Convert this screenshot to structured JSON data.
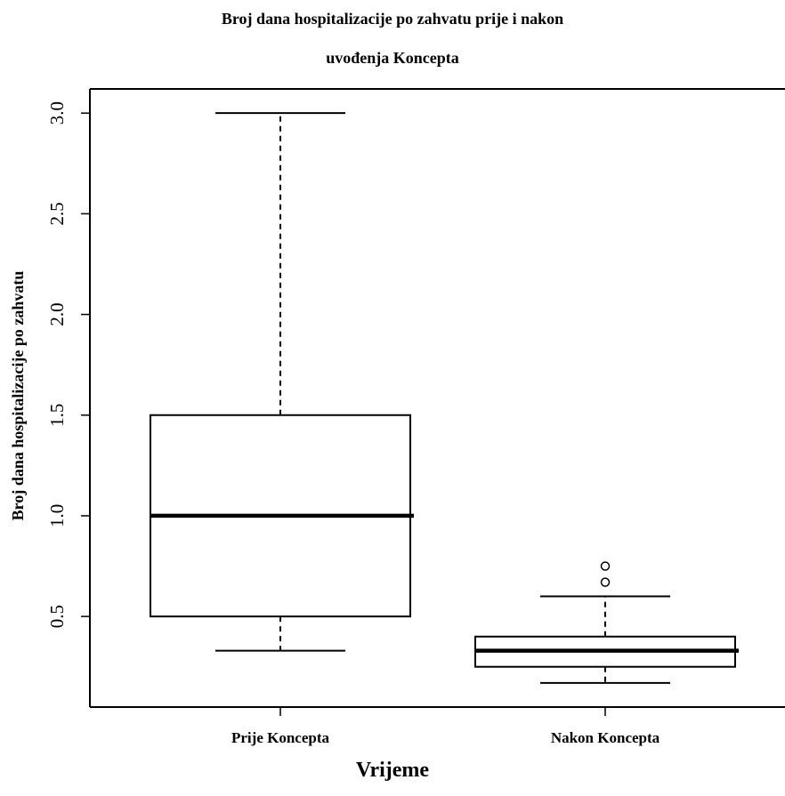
{
  "chart_data": {
    "type": "boxplot",
    "title_line1": "Broj dana hospitalizacije po zahvatu prije i nakon",
    "title_line2": "uvođenja Koncepta",
    "xlabel": "Vrijeme",
    "ylabel": "Broj dana hospitalizacije po zahvatu",
    "categories": [
      "Prije Koncepta",
      "Nakon Koncepta"
    ],
    "y_ticks": [
      "0.5",
      "1.0",
      "1.5",
      "2.0",
      "2.5",
      "3.0"
    ],
    "ylim": [
      0.05,
      3.12
    ],
    "grid": false,
    "boxes": [
      {
        "category": "Prije Koncepta",
        "whisker_low": 0.33,
        "q1": 0.5,
        "median": 1.0,
        "q3": 1.5,
        "whisker_high": 3.0,
        "outliers": []
      },
      {
        "category": "Nakon Koncepta",
        "whisker_low": 0.17,
        "q1": 0.25,
        "median": 0.33,
        "q3": 0.4,
        "whisker_high": 0.6,
        "outliers": [
          0.67,
          0.75
        ]
      }
    ]
  }
}
